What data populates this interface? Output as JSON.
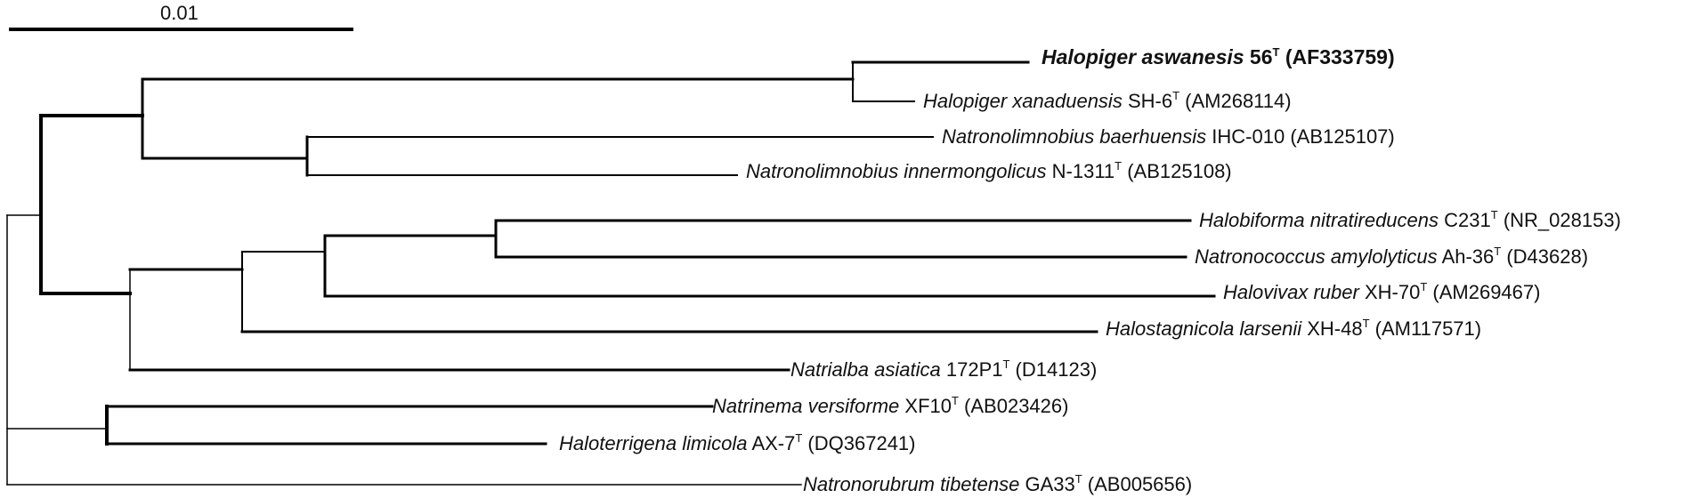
{
  "scale": {
    "label": "0.01"
  },
  "taxa": [
    {
      "species": "Halopiger aswanesis",
      "strain": "56",
      "type_strain": "T",
      "accession": "(AF333759)",
      "bold": true
    },
    {
      "species": "Halopiger xanaduensis",
      "strain": "SH-6",
      "type_strain": "T",
      "accession": "(AM268114)",
      "bold": false
    },
    {
      "species": "Natronolimnobius baerhuensis",
      "strain": "IHC-010",
      "type_strain": "",
      "accession": "(AB125107)",
      "bold": false
    },
    {
      "species": "Natronolimnobius innermongolicus",
      "strain": "N-1311",
      "type_strain": "T",
      "accession": "(AB125108)",
      "bold": false
    },
    {
      "species": "Halobiforma nitratireducens",
      "strain": "C231",
      "type_strain": "T",
      "accession": "(NR_028153)",
      "bold": false
    },
    {
      "species": "Natronococcus amylolyticus",
      "strain": "Ah-36",
      "type_strain": "T",
      "accession": "(D43628)",
      "bold": false
    },
    {
      "species": "Halovivax ruber",
      "strain": "XH-70",
      "type_strain": "T",
      "accession": "(AM269467)",
      "bold": false
    },
    {
      "species": "Halostagnicola larsenii",
      "strain": "XH-48",
      "type_strain": "T",
      "accession": "(AM117571)",
      "bold": false
    },
    {
      "species": "Natrialba asiatica",
      "strain": "172P1",
      "type_strain": "T",
      "accession": "(D14123)",
      "bold": false
    },
    {
      "species": "Natrinema versiforme",
      "strain": "XF10",
      "type_strain": "T",
      "accession": "(AB023426)",
      "bold": false
    },
    {
      "species": "Haloterrigena limicola",
      "strain": "AX-7",
      "type_strain": "T",
      "accession": "(DQ367241)",
      "bold": false
    },
    {
      "species": "Natronorubrum tibetense",
      "strain": "GA33",
      "type_strain": "T",
      "accession": "(AB005656)",
      "bold": false
    }
  ]
}
